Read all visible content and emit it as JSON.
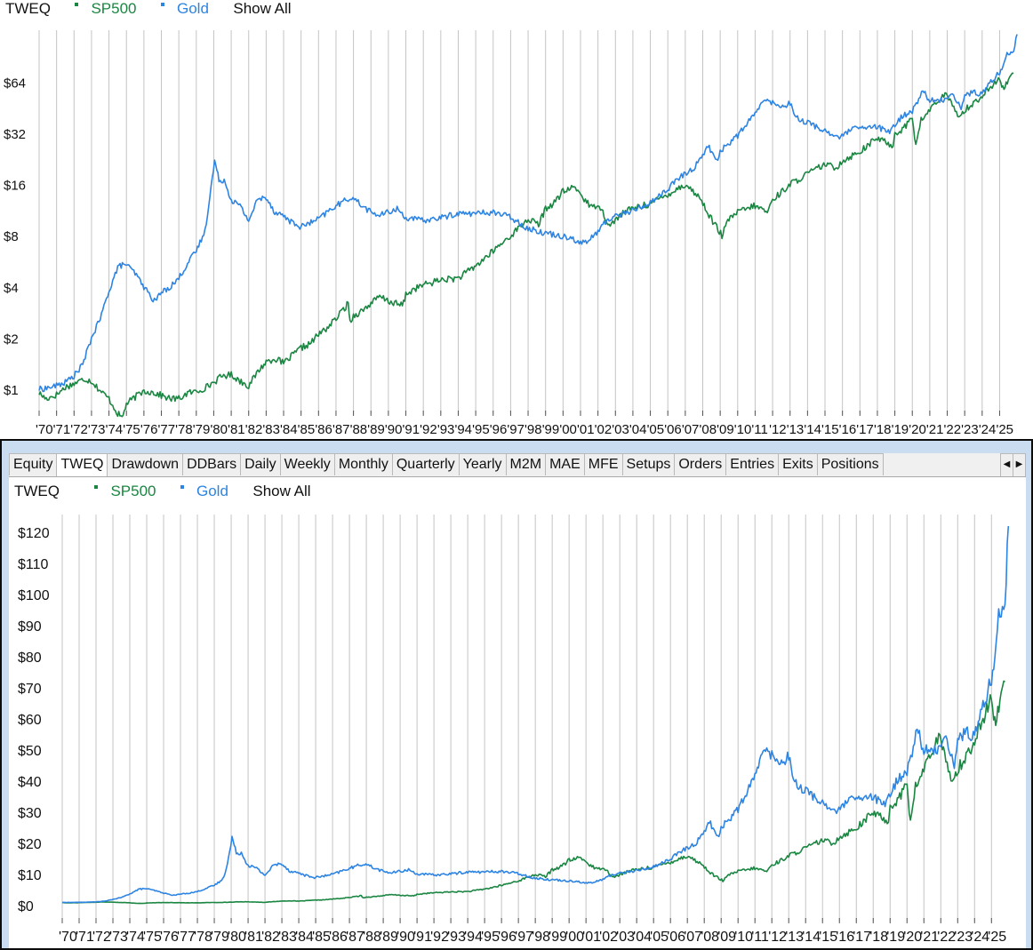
{
  "top_legend": {
    "title": "TWEQ",
    "series": [
      {
        "label": "SP500",
        "color": "#1a8642"
      },
      {
        "label": "Gold",
        "color": "#2d84e2"
      }
    ],
    "show_all": "Show All"
  },
  "bottom_legend": {
    "title": "TWEQ",
    "series": [
      {
        "label": "SP500",
        "color": "#1a8642"
      },
      {
        "label": "Gold",
        "color": "#2d84e2"
      }
    ],
    "show_all": "Show All"
  },
  "tabs": [
    "Equity",
    "TWEQ",
    "Drawdown",
    "DDBars",
    "Daily",
    "Weekly",
    "Monthly",
    "Quarterly",
    "Yearly",
    "M2M",
    "MAE",
    "MFE",
    "Setups",
    "Orders",
    "Entries",
    "Exits",
    "Positions"
  ],
  "active_tab": "TWEQ",
  "tab_nav": {
    "left_icon": "triangle-left",
    "right_icon": "triangle-right"
  },
  "chart_data": [
    {
      "type": "line",
      "scale": "log",
      "ylim": [
        0.75,
        120
      ],
      "yticks": [
        1,
        2,
        4,
        8,
        16,
        32,
        64
      ],
      "ytick_labels": [
        "$1",
        "$2",
        "$4",
        "$8",
        "$16",
        "$32",
        "$64"
      ],
      "xlim": [
        1970,
        2026.3
      ],
      "xtick_labels": [
        "'70",
        "'71",
        "'72",
        "'73",
        "'74",
        "'75",
        "'76",
        "'77",
        "'78",
        "'79",
        "'80",
        "'81",
        "'82",
        "'83",
        "'84",
        "'85",
        "'86",
        "'87",
        "'88",
        "'89",
        "'90",
        "'91",
        "'92",
        "'93",
        "'94",
        "'95",
        "'96",
        "'97",
        "'98",
        "'99",
        "'00",
        "'01",
        "'02",
        "'03",
        "'04",
        "'05",
        "'06",
        "'07",
        "'08",
        "'09",
        "'10",
        "'11",
        "'12",
        "'13",
        "'14",
        "'15",
        "'16",
        "'17",
        "'18",
        "'19",
        "'20",
        "'21",
        "'22",
        "'23",
        "'24",
        "'25"
      ],
      "grid": "vertical",
      "series": [
        {
          "name": "SP500",
          "color": "#1a8642",
          "x": [
            1970.0,
            1970.4,
            1971.0,
            1971.5,
            1972.0,
            1972.6,
            1973.0,
            1973.5,
            1974.0,
            1974.5,
            1974.75,
            1975.0,
            1975.5,
            1976.0,
            1976.5,
            1977.0,
            1977.5,
            1978.0,
            1978.5,
            1979.0,
            1979.5,
            1980.0,
            1980.5,
            1981.0,
            1981.5,
            1982.0,
            1982.6,
            1983.0,
            1983.5,
            1984.0,
            1984.5,
            1985.0,
            1985.5,
            1986.0,
            1986.5,
            1987.0,
            1987.7,
            1987.8,
            1988.0,
            1988.5,
            1989.0,
            1989.5,
            1990.0,
            1990.8,
            1991.0,
            1991.5,
            1992.0,
            1993.0,
            1994.0,
            1995.0,
            1996.0,
            1997.0,
            1998.0,
            1998.6,
            1999.0,
            1999.5,
            2000.0,
            2000.7,
            2001.0,
            2001.7,
            2002.0,
            2002.7,
            2003.0,
            2003.5,
            2004.0,
            2005.0,
            2006.0,
            2007.0,
            2007.8,
            2008.5,
            2009.1,
            2009.5,
            2010.0,
            2011.0,
            2011.7,
            2012.0,
            2013.0,
            2014.0,
            2015.0,
            2015.6,
            2016.0,
            2017.0,
            2018.0,
            2018.9,
            2019.0,
            2019.5,
            2020.0,
            2020.2,
            2020.5,
            2021.0,
            2021.5,
            2021.95,
            2022.3,
            2022.75,
            2023.0,
            2023.5,
            2024.0,
            2024.5,
            2025.0,
            2025.25,
            2025.5,
            2025.8
          ],
          "values": [
            0.95,
            0.88,
            0.93,
            1.03,
            1.08,
            1.15,
            1.12,
            0.98,
            0.88,
            0.72,
            0.68,
            0.82,
            0.9,
            0.98,
            0.96,
            0.92,
            0.88,
            0.88,
            0.95,
            0.97,
            1.02,
            1.1,
            1.2,
            1.22,
            1.12,
            1.05,
            1.3,
            1.45,
            1.52,
            1.42,
            1.58,
            1.75,
            1.85,
            2.1,
            2.3,
            2.6,
            3.2,
            2.5,
            2.7,
            2.9,
            3.2,
            3.5,
            3.3,
            3.1,
            3.6,
            3.9,
            4.1,
            4.4,
            4.5,
            5.3,
            6.5,
            8.0,
            10.0,
            9.3,
            11.5,
            12.5,
            14.5,
            15.5,
            14.0,
            11.5,
            12.5,
            9.0,
            10.0,
            11.0,
            11.6,
            12.3,
            14.0,
            16.0,
            13.5,
            10.0,
            8.0,
            10.0,
            11.0,
            12.0,
            11.0,
            13.0,
            16.0,
            18.5,
            21.0,
            20.0,
            22.0,
            25.0,
            30.0,
            27.0,
            32.0,
            34.0,
            40.0,
            27.0,
            38.0,
            44.0,
            50.0,
            54.0,
            46.0,
            40.0,
            44.0,
            48.0,
            53.0,
            60.0,
            66.0,
            57.0,
            68.0,
            72.0
          ]
        },
        {
          "name": "Gold",
          "color": "#2d84e2",
          "x": [
            1970.0,
            1970.5,
            1971.0,
            1971.5,
            1972.0,
            1972.5,
            1973.0,
            1973.5,
            1974.0,
            1974.5,
            1974.9,
            1975.5,
            1976.0,
            1976.6,
            1977.0,
            1977.5,
            1978.0,
            1978.5,
            1979.0,
            1979.5,
            1980.05,
            1980.3,
            1980.6,
            1981.0,
            1981.5,
            1982.0,
            1982.5,
            1983.0,
            1983.5,
            1984.0,
            1984.5,
            1985.0,
            1985.5,
            1986.0,
            1986.5,
            1987.0,
            1987.9,
            1988.5,
            1989.0,
            1989.5,
            1990.0,
            1990.5,
            1991.0,
            1992.0,
            1993.0,
            1994.0,
            1995.0,
            1996.0,
            1997.0,
            1998.0,
            1999.0,
            1999.8,
            2000.5,
            2001.0,
            2001.5,
            2002.0,
            2002.5,
            2003.0,
            2004.0,
            2005.0,
            2006.0,
            2006.5,
            2007.0,
            2007.5,
            2008.0,
            2008.3,
            2008.8,
            2009.0,
            2009.5,
            2010.0,
            2010.5,
            2011.0,
            2011.7,
            2012.0,
            2012.5,
            2013.0,
            2013.5,
            2014.0,
            2015.0,
            2015.9,
            2016.5,
            2017.0,
            2018.0,
            2018.7,
            2019.0,
            2019.5,
            2020.0,
            2020.6,
            2021.0,
            2021.5,
            2022.0,
            2022.3,
            2022.8,
            2023.0,
            2023.5,
            2024.0,
            2024.5,
            2025.0,
            2025.2,
            2025.5,
            2025.8,
            2026.0
          ],
          "values": [
            1.0,
            1.02,
            1.05,
            1.1,
            1.2,
            1.4,
            2.0,
            2.6,
            3.8,
            5.2,
            5.5,
            4.8,
            4.0,
            3.3,
            3.7,
            4.0,
            4.5,
            5.5,
            6.5,
            8.5,
            22.0,
            17.0,
            17.0,
            13.0,
            12.0,
            9.8,
            13.0,
            13.5,
            11.0,
            10.5,
            9.5,
            9.0,
            9.5,
            10.0,
            11.0,
            12.0,
            13.5,
            12.0,
            11.0,
            10.5,
            11.0,
            11.5,
            10.2,
            9.8,
            10.2,
            10.8,
            10.8,
            11.0,
            10.3,
            8.8,
            8.3,
            8.0,
            7.8,
            7.2,
            7.5,
            8.5,
            9.8,
            10.5,
            11.2,
            12.5,
            15.0,
            17.0,
            18.5,
            20.0,
            24.0,
            27.0,
            22.0,
            25.0,
            28.0,
            31.0,
            36.0,
            42.0,
            52.0,
            48.0,
            46.0,
            48.0,
            38.0,
            37.0,
            33.0,
            30.0,
            34.0,
            34.0,
            35.0,
            32.0,
            36.0,
            41.0,
            43.0,
            57.0,
            50.0,
            49.0,
            52.0,
            55.0,
            45.0,
            53.0,
            56.0,
            54.0,
            65.0,
            72.0,
            82.0,
            96.0,
            98.0,
            122.0
          ]
        }
      ]
    },
    {
      "type": "line",
      "scale": "linear",
      "ylim": [
        -4,
        124
      ],
      "yticks": [
        0,
        10,
        20,
        30,
        40,
        50,
        60,
        70,
        80,
        90,
        100,
        110,
        120
      ],
      "ytick_labels": [
        "$0",
        "$10",
        "$20",
        "$30",
        "$40",
        "$50",
        "$60",
        "$70",
        "$80",
        "$90",
        "$100",
        "$110",
        "$120"
      ],
      "xlim": [
        1970,
        2026.3
      ],
      "xtick_labels": [
        "'70",
        "'71",
        "'72",
        "'73",
        "'74",
        "'75",
        "'76",
        "'77",
        "'78",
        "'79",
        "'80",
        "'81",
        "'82",
        "'83",
        "'84",
        "'85",
        "'86",
        "'87",
        "'88",
        "'89",
        "'90",
        "'91",
        "'92",
        "'93",
        "'94",
        "'95",
        "'96",
        "'97",
        "'98",
        "'99",
        "'00",
        "'01",
        "'02",
        "'03",
        "'04",
        "'05",
        "'06",
        "'07",
        "'08",
        "'09",
        "'10",
        "'11",
        "'12",
        "'13",
        "'14",
        "'15",
        "'16",
        "'17",
        "'18",
        "'19",
        "'20",
        "'21",
        "'22",
        "'23",
        "'24",
        "'25"
      ],
      "grid": "vertical",
      "series_ref": "same as top chart (SP500, Gold)"
    }
  ]
}
